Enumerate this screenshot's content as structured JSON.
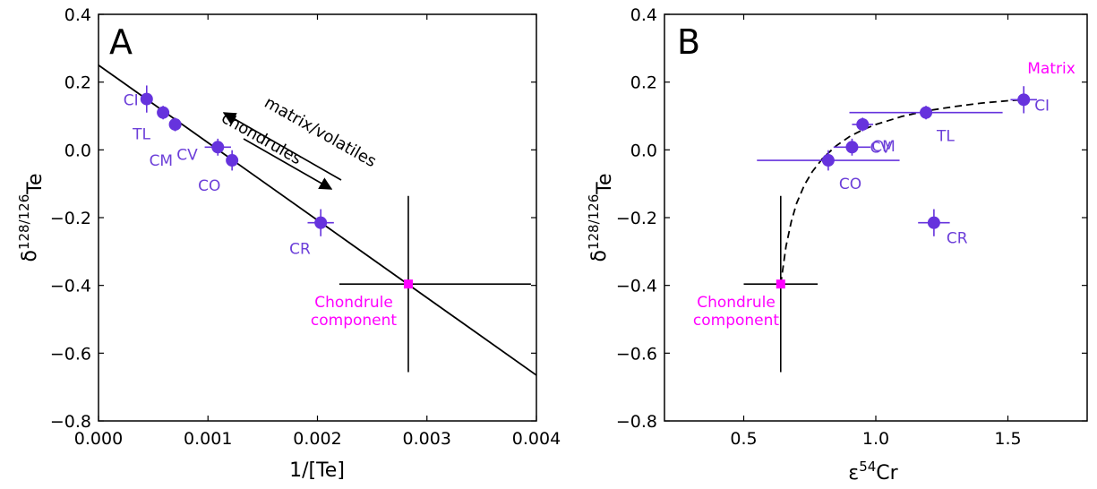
{
  "colors": {
    "point": "#6633dd",
    "component": "#ff00ff",
    "axis": "#000000"
  },
  "chart_data": [
    {
      "type": "scatter",
      "panel_label": "A",
      "xlabel": "1/[Te]",
      "ylabel_base": "δ",
      "ylabel_sup": "128/126",
      "ylabel_sub": "Te",
      "xlim": [
        0.0,
        0.004
      ],
      "ylim": [
        -0.8,
        0.4
      ],
      "xticks": [
        "0.000",
        "0.001",
        "0.002",
        "0.003",
        "0.004"
      ],
      "yticks": [
        "−0.8",
        "−0.6",
        "−0.4",
        "−0.2",
        "0.0",
        "0.2",
        "0.4"
      ],
      "points": [
        {
          "label": "CI",
          "x": 0.00044,
          "y": 0.15,
          "xerr": 4e-05,
          "yerr": 0.04
        },
        {
          "label": "TL",
          "x": 0.00059,
          "y": 0.11,
          "xerr": 3e-05,
          "yerr": 0.02
        },
        {
          "label": "CM",
          "x": 0.0007,
          "y": 0.075,
          "xerr": 3e-05,
          "yerr": 0.02
        },
        {
          "label": "CV",
          "x": 0.00109,
          "y": 0.008,
          "xerr": 0.00012,
          "yerr": 0.025
        },
        {
          "label": "CO",
          "x": 0.00122,
          "y": -0.031,
          "xerr": 3e-05,
          "yerr": 0.03
        },
        {
          "label": "CR",
          "x": 0.00203,
          "y": -0.215,
          "xerr": 0.00012,
          "yerr": 0.04
        }
      ],
      "component": {
        "label_lines": [
          "Chondrule",
          "component"
        ],
        "x": 0.00283,
        "y": -0.396,
        "xerr_low": 0.00063,
        "xerr_high": 0.00112,
        "yerr": 0.26
      },
      "fit_line": {
        "x": [
          0.0,
          0.004
        ],
        "y": [
          0.25,
          -0.665
        ]
      },
      "annotations": {
        "matrix": "matrix/volatiles",
        "chondrules": "chondrules"
      }
    },
    {
      "type": "scatter",
      "panel_label": "B",
      "xlabel_base": "ε",
      "xlabel_sup": "54",
      "xlabel_rest": "Cr",
      "ylabel_base": "δ",
      "ylabel_sup": "128/126",
      "ylabel_sub": "Te",
      "xlim": [
        0.2,
        1.8
      ],
      "ylim": [
        -0.8,
        0.4
      ],
      "xticks": [
        "0.5",
        "1.0",
        "1.5"
      ],
      "yticks": [
        "−0.8",
        "−0.6",
        "−0.4",
        "−0.2",
        "0.0",
        "0.2",
        "0.4"
      ],
      "points": [
        {
          "label": "CI",
          "x": 1.56,
          "y": 0.148,
          "xerr": 0.05,
          "yerr": 0.04
        },
        {
          "label": "TL",
          "x": 1.19,
          "y": 0.11,
          "xerr": 0.29,
          "yerr": 0.02
        },
        {
          "label": "CM",
          "x": 0.95,
          "y": 0.075,
          "xerr": 0.04,
          "yerr": 0.02
        },
        {
          "label": "CV",
          "x": 0.91,
          "y": 0.008,
          "xerr": 0.07,
          "yerr": 0.025
        },
        {
          "label": "CO",
          "x": 0.82,
          "y": -0.031,
          "xerr": 0.27,
          "yerr": 0.03
        },
        {
          "label": "CR",
          "x": 1.22,
          "y": -0.215,
          "xerr": 0.06,
          "yerr": 0.04
        }
      ],
      "component": {
        "label_lines": [
          "Chondrule",
          "component"
        ],
        "x": 0.64,
        "y": -0.396,
        "xerr_low": 0.14,
        "xerr_high": 0.14,
        "yerr": 0.26
      },
      "matrix_label": "Matrix",
      "mixing_curve": {
        "x": [
          0.64,
          0.66,
          0.68,
          0.7,
          0.73,
          0.76,
          0.8,
          0.85,
          0.9,
          0.95,
          1.0,
          1.1,
          1.2,
          1.3,
          1.4,
          1.5,
          1.56
        ],
        "y": [
          -0.396,
          -0.285,
          -0.212,
          -0.158,
          -0.103,
          -0.064,
          -0.024,
          0.012,
          0.039,
          0.059,
          0.075,
          0.099,
          0.116,
          0.128,
          0.138,
          0.145,
          0.148
        ]
      }
    }
  ]
}
